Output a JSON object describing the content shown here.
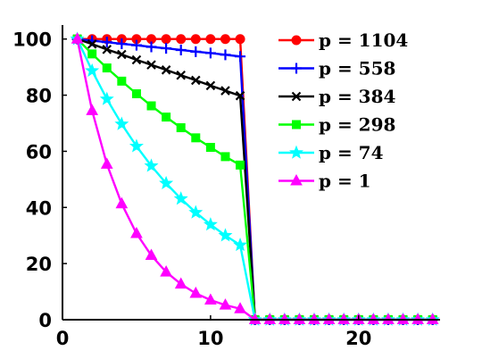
{
  "chart_data": {
    "type": "line",
    "title": "",
    "xlabel": "",
    "ylabel": "",
    "xlim": [
      0,
      25.5
    ],
    "ylim": [
      0,
      105
    ],
    "x_ticks": [
      0,
      10,
      20
    ],
    "y_ticks": [
      0,
      20,
      40,
      60,
      80,
      100
    ],
    "grid": false,
    "legend_position": "top-right",
    "x": [
      1,
      2,
      3,
      4,
      5,
      6,
      7,
      8,
      9,
      10,
      11,
      12,
      13,
      14,
      15,
      16,
      17,
      18,
      19,
      20,
      21,
      22,
      23,
      24,
      25
    ],
    "series": [
      {
        "name": "p = 1104",
        "color": "#ff0000",
        "marker": "circle",
        "values": [
          100,
          100,
          100,
          100,
          100,
          100,
          100,
          100,
          100,
          100,
          100,
          100,
          0,
          0,
          0,
          0,
          0,
          0,
          0,
          0,
          0,
          0,
          0,
          0,
          0
        ]
      },
      {
        "name": "p = 558",
        "color": "#0000ff",
        "marker": "plus",
        "values": [
          100,
          99.4,
          98.9,
          98.3,
          97.8,
          97.2,
          96.7,
          96.1,
          95.5,
          95.0,
          94.4,
          93.8,
          0,
          0,
          0,
          0,
          0,
          0,
          0,
          0,
          0,
          0,
          0,
          0,
          0
        ]
      },
      {
        "name": "p = 384",
        "color": "#000000",
        "marker": "x",
        "values": [
          100,
          98.2,
          96.3,
          94.5,
          92.6,
          90.8,
          89.0,
          87.1,
          85.3,
          83.4,
          81.6,
          79.8,
          0,
          0,
          0,
          0,
          0,
          0,
          0,
          0,
          0,
          0,
          0,
          0,
          0
        ]
      },
      {
        "name": "p = 298",
        "color": "#00ff00",
        "marker": "square",
        "values": [
          100,
          94.7,
          89.7,
          85.0,
          80.5,
          76.2,
          72.2,
          68.4,
          64.8,
          61.4,
          58.1,
          55.1,
          0,
          0,
          0,
          0,
          0,
          0,
          0,
          0,
          0,
          0,
          0,
          0,
          0
        ]
      },
      {
        "name": "p = 74",
        "color": "#00ffff",
        "marker": "star",
        "values": [
          100,
          88.7,
          78.6,
          69.7,
          61.8,
          54.8,
          48.6,
          43.1,
          38.2,
          33.9,
          30.0,
          26.6,
          0,
          0,
          0,
          0,
          0,
          0,
          0,
          0,
          0,
          0,
          0,
          0,
          0
        ]
      },
      {
        "name": "p = 1",
        "color": "#ff00ff",
        "marker": "triangle",
        "values": [
          100,
          74.5,
          55.4,
          41.3,
          30.7,
          22.9,
          17.0,
          12.7,
          9.4,
          7.0,
          5.2,
          3.9,
          0,
          0,
          0,
          0,
          0,
          0,
          0,
          0,
          0,
          0,
          0,
          0,
          0
        ]
      }
    ]
  }
}
